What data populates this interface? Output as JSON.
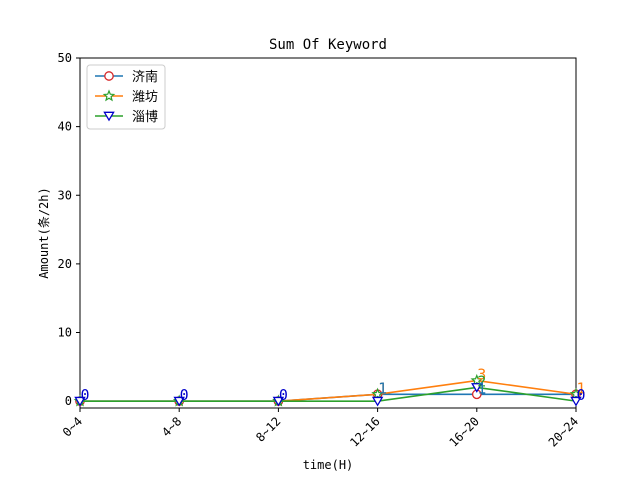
{
  "chart_data": {
    "type": "line",
    "title": "Sum Of Keyword",
    "xlabel": "time(H)",
    "ylabel": "Amount(条/2h)",
    "categories": [
      "0~4",
      "4~8",
      "8~12",
      "12~16",
      "16~20",
      "20~24"
    ],
    "ylim": [
      -1,
      50
    ],
    "yticks": [
      0,
      10,
      20,
      30,
      40,
      50
    ],
    "grid": false,
    "legend_position": "top-left",
    "series": [
      {
        "name": "济南",
        "values": [
          0,
          0,
          0,
          1,
          1,
          1
        ],
        "color": "#1f77b4",
        "marker": "circle",
        "marker_edge": "#d62728",
        "label_color": "#1f77b4"
      },
      {
        "name": "潍坊",
        "values": [
          0,
          0,
          0,
          1,
          3,
          1
        ],
        "color": "#ff7f0e",
        "marker": "star",
        "marker_edge": "#2ca02c",
        "label_color": "#ff7f0e"
      },
      {
        "name": "淄博",
        "values": [
          0,
          0,
          0,
          0,
          2,
          0
        ],
        "color": "#2ca02c",
        "marker": "triangle-down",
        "marker_edge": "#0000cc",
        "label_color": "#2ca02c"
      }
    ],
    "data_labels": {
      "color": "#0000cc",
      "labels": [
        {
          "x": "0~4",
          "text": "0",
          "series": "淄博"
        },
        {
          "x": "4~8",
          "text": "0",
          "series": "淄博"
        },
        {
          "x": "8~12",
          "text": "0",
          "series": "淄博"
        },
        {
          "x": "12~16",
          "text": "1",
          "series": "潍坊"
        },
        {
          "x": "12~16",
          "text": "1",
          "series": "济南"
        },
        {
          "x": "16~20",
          "text": "3",
          "series": "潍坊"
        },
        {
          "x": "16~20",
          "text": "2",
          "series": "淄博"
        },
        {
          "x": "16~20",
          "text": "1",
          "series": "济南"
        },
        {
          "x": "20~24",
          "text": "1",
          "series": "潍坊"
        },
        {
          "x": "20~24",
          "text": "0",
          "series": "淄博"
        }
      ]
    }
  }
}
